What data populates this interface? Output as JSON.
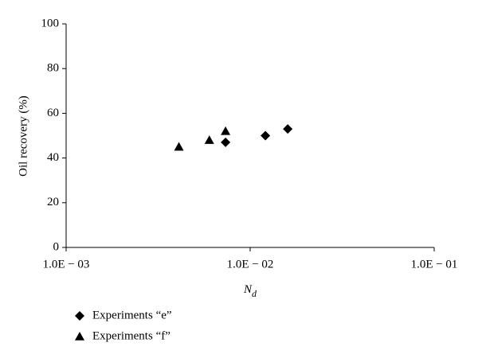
{
  "chart_data": {
    "type": "scatter",
    "xlabel": "N",
    "xlabel_subscript": "d",
    "ylabel": "Oil recovery (%)",
    "xscale": "log",
    "xlim": [
      0.001,
      0.1
    ],
    "xticks": [
      {
        "value": 0.001,
        "label": "1.0E − 03"
      },
      {
        "value": 0.01,
        "label": "1.0E − 02"
      },
      {
        "value": 0.1,
        "label": "1.0E − 01"
      }
    ],
    "ylim": [
      0,
      100
    ],
    "yticks": [
      0,
      20,
      40,
      60,
      80,
      100
    ],
    "legend": "bottom-left",
    "series": [
      {
        "name": "Experiments “e”",
        "color": "#000000",
        "marker": "diamond",
        "x": [
          0.00735,
          0.0121,
          0.016
        ],
        "values": [
          47,
          50,
          53
        ]
      },
      {
        "name": "Experiments “f”",
        "color": "#000000",
        "marker": "triangle",
        "x": [
          0.0041,
          0.006,
          0.00735
        ],
        "values": [
          45,
          48,
          52
        ]
      }
    ]
  }
}
